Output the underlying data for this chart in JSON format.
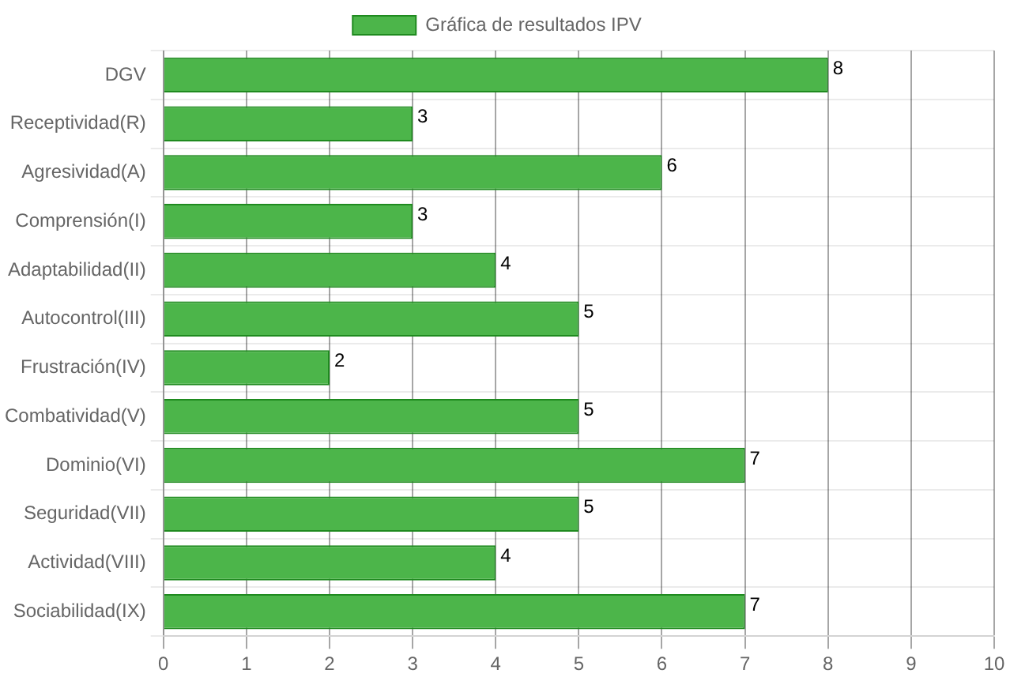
{
  "chart_data": {
    "type": "bar",
    "orientation": "horizontal",
    "categories": [
      "DGV",
      "Receptividad(R)",
      "Agresividad(A)",
      "Comprensión(I)",
      "Adaptabilidad(II)",
      "Autocontrol(III)",
      "Frustración(IV)",
      "Combatividad(V)",
      "Dominio(VI)",
      "Seguridad(VII)",
      "Actividad(VIII)",
      "Sociabilidad(IX)"
    ],
    "series": [
      {
        "name": "Gráfica de resultados IPV",
        "color": "#4cb54a",
        "values": [
          8,
          3,
          6,
          3,
          4,
          5,
          2,
          5,
          7,
          5,
          4,
          7
        ]
      }
    ],
    "xlim": [
      0,
      10
    ],
    "xticks": [
      0,
      1,
      2,
      3,
      4,
      5,
      6,
      7,
      8,
      9,
      10
    ],
    "grid": true,
    "legend": "top",
    "data_labels": true
  }
}
